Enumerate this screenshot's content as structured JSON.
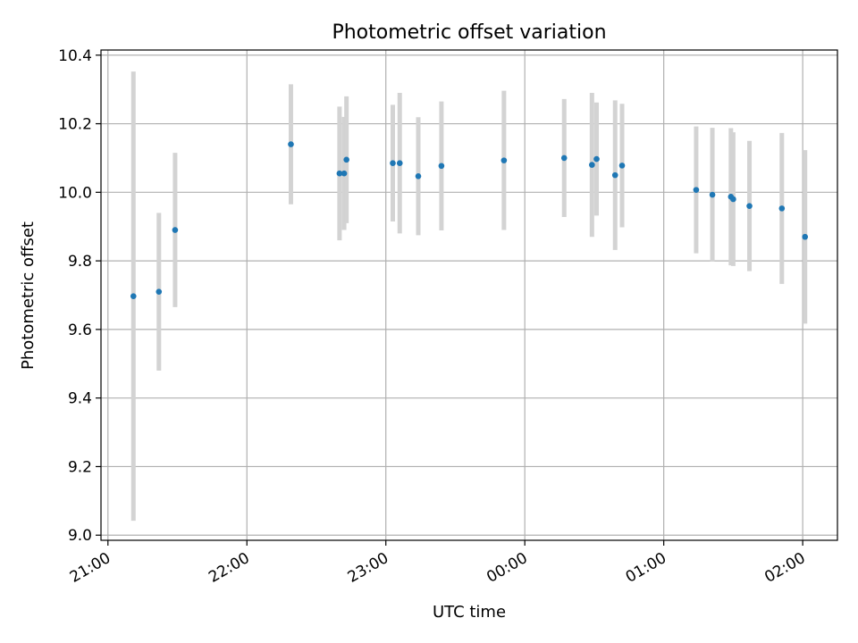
{
  "chart_data": {
    "type": "scatter",
    "title": "Photometric offset variation",
    "xlabel": "UTC time",
    "ylabel": "Photometric offset",
    "x_axis_type": "time",
    "xlim": [
      "20:57",
      "02:15"
    ],
    "ylim": [
      8.985,
      10.415
    ],
    "grid": true,
    "x_tick_labels": [
      "21:00",
      "22:00",
      "23:00",
      "00:00",
      "01:00",
      "02:00"
    ],
    "y_tick_labels": [
      "9.0",
      "9.2",
      "9.4",
      "9.6",
      "9.8",
      "10.0",
      "10.2",
      "10.4"
    ],
    "colors": {
      "point": "#1f77b4",
      "errorbar": "#d3d3d3",
      "grid": "#b0b0b0"
    },
    "series": [
      {
        "points": [
          {
            "x": "21:11",
            "y": 9.697,
            "err": 0.655
          },
          {
            "x": "21:22",
            "y": 9.71,
            "err": 0.23
          },
          {
            "x": "21:29",
            "y": 9.89,
            "err": 0.225
          },
          {
            "x": "22:19",
            "y": 10.14,
            "err": 0.175
          },
          {
            "x": "22:40",
            "y": 10.055,
            "err": 0.195
          },
          {
            "x": "22:42",
            "y": 10.055,
            "err": 0.165
          },
          {
            "x": "22:43",
            "y": 10.095,
            "err": 0.185
          },
          {
            "x": "23:03",
            "y": 10.085,
            "err": 0.17
          },
          {
            "x": "23:06",
            "y": 10.085,
            "err": 0.205
          },
          {
            "x": "23:14",
            "y": 10.047,
            "err": 0.172
          },
          {
            "x": "23:24",
            "y": 10.077,
            "err": 0.188
          },
          {
            "x": "23:51",
            "y": 10.093,
            "err": 0.203
          },
          {
            "x": "00:17",
            "y": 10.1,
            "err": 0.172
          },
          {
            "x": "00:29",
            "y": 10.08,
            "err": 0.21
          },
          {
            "x": "00:31",
            "y": 10.097,
            "err": 0.165
          },
          {
            "x": "00:39",
            "y": 10.05,
            "err": 0.218
          },
          {
            "x": "00:42",
            "y": 10.078,
            "err": 0.18
          },
          {
            "x": "01:14",
            "y": 10.007,
            "err": 0.185
          },
          {
            "x": "01:21",
            "y": 9.993,
            "err": 0.195
          },
          {
            "x": "01:29",
            "y": 9.987,
            "err": 0.2
          },
          {
            "x": "01:30",
            "y": 9.98,
            "err": 0.195
          },
          {
            "x": "01:37",
            "y": 9.96,
            "err": 0.19
          },
          {
            "x": "01:51",
            "y": 9.953,
            "err": 0.22
          },
          {
            "x": "02:01",
            "y": 9.87,
            "err": 0.253
          }
        ]
      }
    ]
  }
}
